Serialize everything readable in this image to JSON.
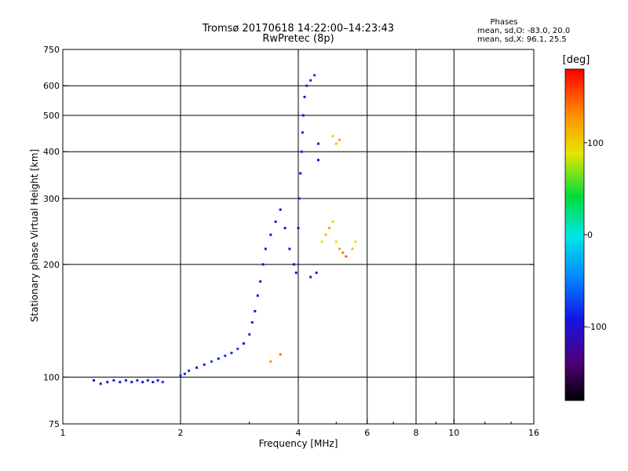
{
  "header": {
    "title_line1": "Tromsø 20170618 14:22:00–14:23:43",
    "title_line2": "RwPretec (8p)"
  },
  "phases_box": {
    "title": "Phases",
    "line1": "mean, sd,O: -83.0, 20.0",
    "line2": "mean, sd,X: 96.1, 25.5"
  },
  "colorbar": {
    "label": "[deg]",
    "range": [
      -180,
      180
    ],
    "tick_values": [
      100,
      0,
      -100
    ],
    "tick_labels": [
      "100",
      "0",
      "-100"
    ]
  },
  "chart_data": {
    "type": "scatter",
    "title": "Tromsø 20170618 14:22:00–14:23:43",
    "subtitle": "RwPretec (8p)",
    "xlabel": "Frequency [MHz]",
    "ylabel": "Stationary phase Virtual Height [km]",
    "xscale": "log",
    "yscale": "log",
    "xlim": [
      1,
      16
    ],
    "ylim": [
      75,
      750
    ],
    "xticks": [
      1,
      2,
      4,
      6,
      8,
      10,
      16
    ],
    "xtick_labels": [
      "1",
      "2",
      "4",
      "6",
      "8",
      "10",
      "16"
    ],
    "x_gridlines": [
      2,
      4,
      6,
      8,
      10
    ],
    "yticks": [
      75,
      100,
      200,
      300,
      400,
      500,
      600,
      750
    ],
    "ytick_labels": [
      "75",
      "100",
      "200",
      "300",
      "400",
      "500",
      "600",
      "750"
    ],
    "y_gridlines": [
      100,
      200,
      300,
      400,
      500,
      600
    ],
    "grid": true,
    "color_encoding": "phase in degrees, rainbow scale from -180 (black/violet) to +180 (red)",
    "series": [
      {
        "mode": "O",
        "points": [
          [
            1.2,
            98,
            -90
          ],
          [
            1.25,
            96,
            -95
          ],
          [
            1.3,
            97,
            -100
          ],
          [
            1.35,
            98,
            -85
          ],
          [
            1.4,
            97,
            -92
          ],
          [
            1.45,
            98,
            -88
          ],
          [
            1.5,
            97,
            -95
          ],
          [
            1.55,
            98,
            -80
          ],
          [
            1.6,
            97,
            -90
          ],
          [
            1.65,
            98,
            -85
          ],
          [
            1.7,
            97,
            -92
          ],
          [
            1.75,
            98,
            -88
          ],
          [
            1.8,
            97,
            -78
          ],
          [
            2.0,
            101,
            -80
          ],
          [
            2.05,
            102,
            -85
          ],
          [
            2.1,
            104,
            -75
          ],
          [
            2.2,
            106,
            -90
          ],
          [
            2.3,
            108,
            -82
          ],
          [
            2.4,
            110,
            -70
          ],
          [
            2.5,
            112,
            -88
          ],
          [
            2.6,
            114,
            -78
          ],
          [
            2.7,
            116,
            -85
          ],
          [
            2.8,
            119,
            -72
          ],
          [
            2.9,
            123,
            -90
          ],
          [
            3.0,
            130,
            -82
          ],
          [
            3.05,
            140,
            -88
          ],
          [
            3.1,
            150,
            -95
          ],
          [
            3.15,
            165,
            -90
          ],
          [
            3.2,
            180,
            -85
          ],
          [
            3.25,
            200,
            -92
          ],
          [
            3.3,
            220,
            -98
          ],
          [
            3.4,
            240,
            -95
          ],
          [
            3.5,
            260,
            -100
          ],
          [
            3.6,
            280,
            -90
          ],
          [
            3.7,
            250,
            -95
          ],
          [
            3.8,
            220,
            -92
          ],
          [
            3.9,
            200,
            -98
          ],
          [
            3.95,
            190,
            -88
          ],
          [
            4.0,
            250,
            -90
          ],
          [
            4.02,
            300,
            -85
          ],
          [
            4.05,
            350,
            -92
          ],
          [
            4.08,
            400,
            -80
          ],
          [
            4.1,
            450,
            -85
          ],
          [
            4.12,
            500,
            -90
          ],
          [
            4.15,
            560,
            -88
          ],
          [
            4.2,
            600,
            -82
          ],
          [
            4.3,
            620,
            -78
          ],
          [
            4.4,
            640,
            -75
          ],
          [
            4.5,
            420,
            -85
          ],
          [
            4.5,
            380,
            -90
          ],
          [
            4.45,
            190,
            -88
          ],
          [
            4.3,
            185,
            -92
          ]
        ]
      },
      {
        "mode": "X",
        "points": [
          [
            4.6,
            230,
            90
          ],
          [
            4.7,
            240,
            110
          ],
          [
            4.8,
            250,
            120
          ],
          [
            4.9,
            260,
            100
          ],
          [
            5.0,
            230,
            95
          ],
          [
            5.1,
            220,
            130
          ],
          [
            5.2,
            215,
            140
          ],
          [
            5.3,
            210,
            150
          ],
          [
            5.5,
            220,
            110
          ],
          [
            5.6,
            230,
            90
          ],
          [
            4.9,
            440,
            100
          ],
          [
            5.0,
            420,
            110
          ],
          [
            5.1,
            430,
            120
          ],
          [
            3.4,
            110,
            130
          ],
          [
            3.6,
            115,
            140
          ]
        ]
      }
    ]
  }
}
